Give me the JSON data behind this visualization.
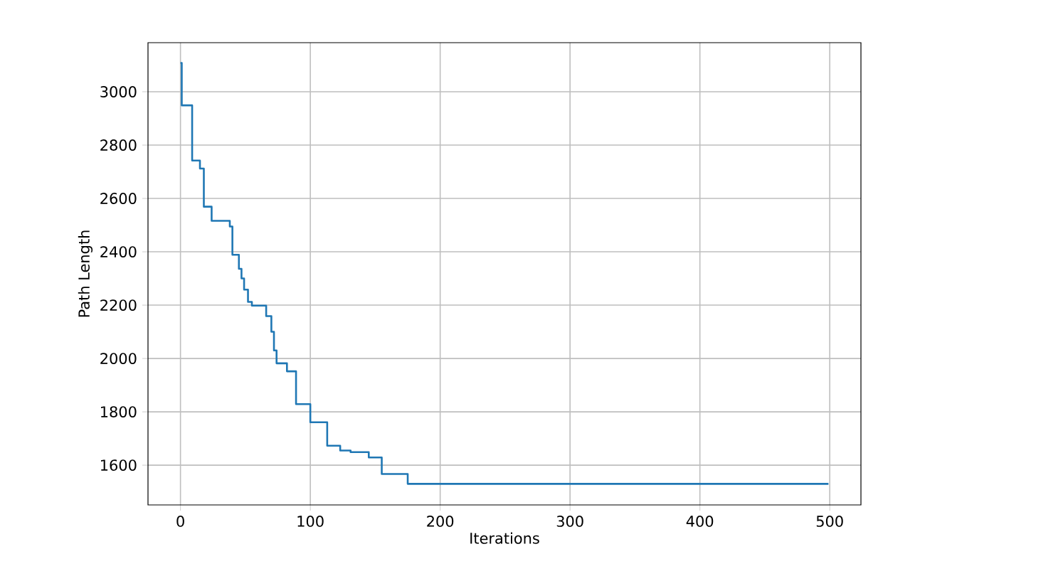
{
  "chart_data": {
    "type": "step",
    "xlabel": "Iterations",
    "ylabel": "Path Length",
    "x": [
      0,
      1,
      9,
      15,
      18,
      24,
      38,
      40,
      45,
      47,
      49,
      52,
      55,
      66,
      70,
      72,
      74,
      82,
      89,
      100,
      113,
      123,
      131,
      145,
      155,
      175,
      499
    ],
    "series": [
      {
        "color": "#1f77b4",
        "values": [
          3108,
          2949,
          2742,
          2712,
          2569,
          2516,
          2495,
          2389,
          2336,
          2300,
          2258,
          2212,
          2198,
          2159,
          2100,
          2030,
          1982,
          1952,
          1829,
          1761,
          1673,
          1655,
          1649,
          1629,
          1567,
          1530,
          1530
        ]
      }
    ],
    "xlim": [
      -25,
      524
    ],
    "ylim": [
      1451,
      3184
    ],
    "xticks": [
      0,
      100,
      200,
      300,
      400,
      500
    ],
    "yticks": [
      1600,
      1800,
      2000,
      2200,
      2400,
      2600,
      2800,
      3000
    ],
    "grid": true
  }
}
